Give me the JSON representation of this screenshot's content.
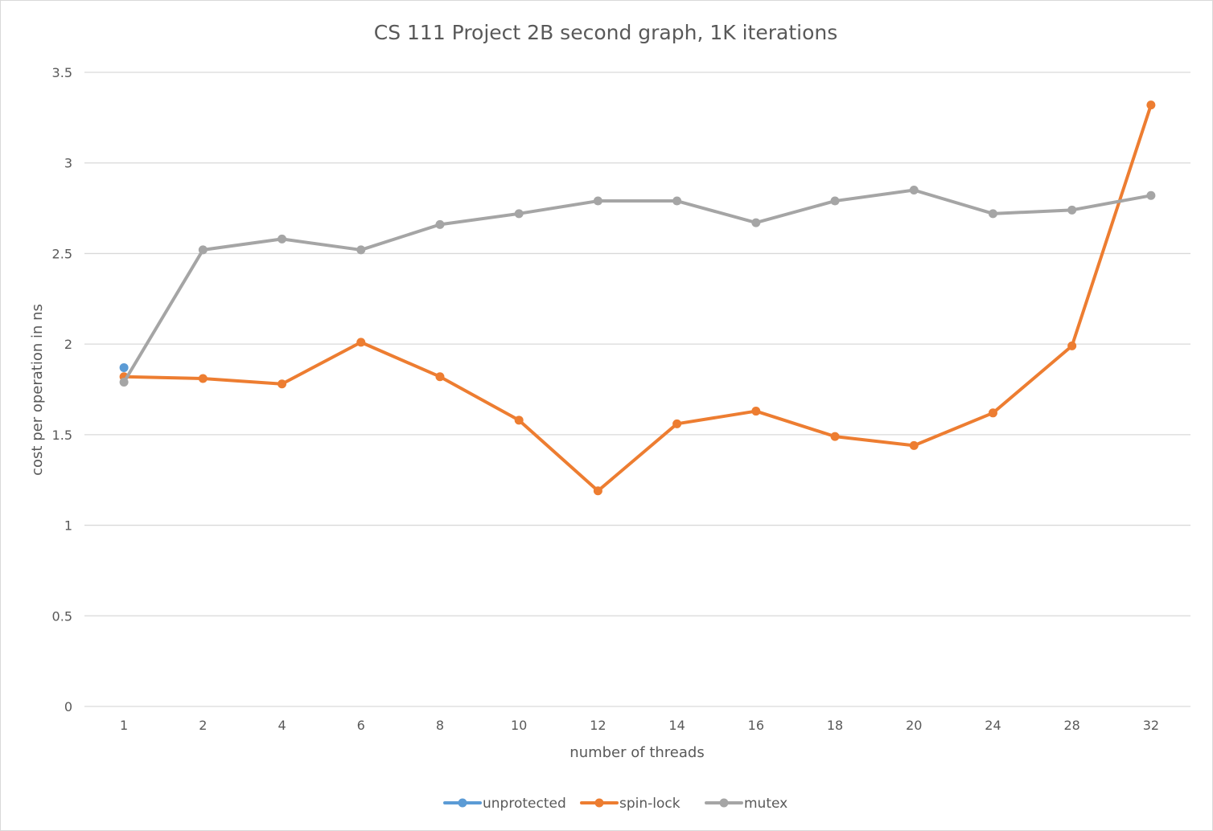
{
  "chart_data": {
    "type": "line",
    "title": "CS 111 Project 2B second graph, 1K iterations",
    "xlabel": "number of threads",
    "ylabel": "cost per operation in ns",
    "categories": [
      "1",
      "2",
      "4",
      "6",
      "8",
      "10",
      "12",
      "14",
      "16",
      "18",
      "20",
      "24",
      "28",
      "32"
    ],
    "ylim": [
      0,
      3.5
    ],
    "yticks": [
      "0",
      "0.5",
      "1",
      "1.5",
      "2",
      "2.5",
      "3",
      "3.5"
    ],
    "grid": true,
    "legend_position": "bottom",
    "series": [
      {
        "name": "unprotected",
        "color": "#5b9bd5",
        "values": [
          1.87,
          null,
          null,
          null,
          null,
          null,
          null,
          null,
          null,
          null,
          null,
          null,
          null,
          null
        ]
      },
      {
        "name": "spin-lock",
        "color": "#ed7d31",
        "values": [
          1.82,
          1.81,
          1.78,
          2.01,
          1.82,
          1.58,
          1.19,
          1.56,
          1.63,
          1.49,
          1.44,
          1.62,
          1.99,
          3.32
        ]
      },
      {
        "name": "mutex",
        "color": "#a5a5a5",
        "values": [
          1.79,
          2.52,
          2.58,
          2.52,
          2.66,
          2.72,
          2.79,
          2.79,
          2.67,
          2.79,
          2.85,
          2.72,
          2.74,
          2.82
        ]
      }
    ]
  }
}
